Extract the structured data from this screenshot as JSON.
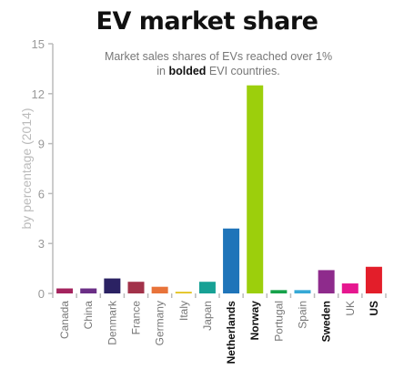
{
  "header": {
    "title": "EV market share",
    "subtitle_line1": "Market sales shares of EVs reached over 1%",
    "subtitle_line2_pre": "in ",
    "subtitle_line2_bold": "bolded",
    "subtitle_line2_post": " EVI countries."
  },
  "chart_data": {
    "type": "bar",
    "title": "EV market share",
    "subtitle": "Market sales shares of EVs reached over 1% in bolded EVI countries.",
    "xlabel": "",
    "ylabel": "by percentage (2014)",
    "ylim": [
      0,
      15
    ],
    "yticks": [
      0,
      3,
      6,
      9,
      12,
      15
    ],
    "grid": false,
    "categories": [
      "Canada",
      "China",
      "Denmark",
      "France",
      "Germany",
      "Italy",
      "Japan",
      "Netherlands",
      "Norway",
      "Portugal",
      "Spain",
      "Sweden",
      "UK",
      "US"
    ],
    "values": [
      0.3,
      0.3,
      0.9,
      0.7,
      0.4,
      0.1,
      0.7,
      3.9,
      12.5,
      0.2,
      0.2,
      1.4,
      0.6,
      1.6
    ],
    "colors": [
      "#a4245e",
      "#6b2f86",
      "#2b2263",
      "#a2324a",
      "#e8733a",
      "#e3c31e",
      "#17a195",
      "#1f74b9",
      "#9ccf0c",
      "#16a24a",
      "#36a9d6",
      "#8e2b8c",
      "#e6178f",
      "#e31e2a"
    ],
    "bolded": [
      false,
      false,
      false,
      false,
      false,
      false,
      false,
      true,
      true,
      false,
      false,
      true,
      false,
      true
    ]
  }
}
